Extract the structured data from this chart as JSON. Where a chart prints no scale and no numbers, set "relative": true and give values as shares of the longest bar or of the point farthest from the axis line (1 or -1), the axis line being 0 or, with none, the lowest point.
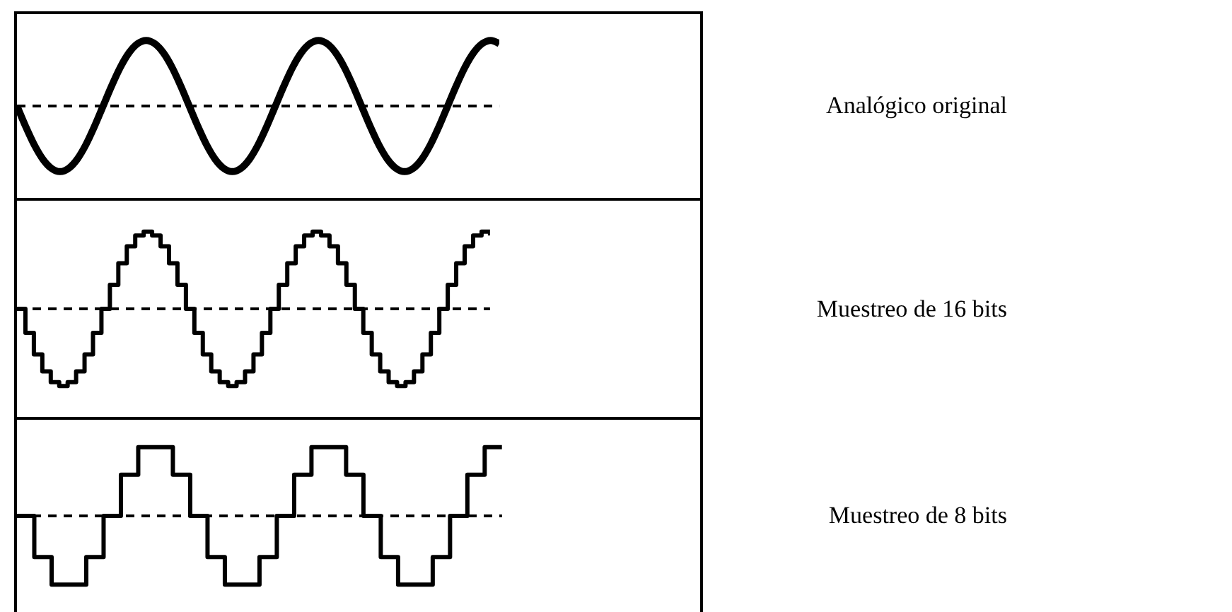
{
  "chart_data": [
    {
      "type": "line",
      "legend": "right",
      "relative": true,
      "tick_labels": false,
      "categories": [
        null,
        null,
        null,
        null,
        null,
        null,
        null,
        null,
        null,
        null,
        null,
        null,
        null,
        null,
        null,
        null,
        null,
        null,
        null,
        null,
        null,
        null,
        null,
        null,
        null,
        null,
        null,
        null,
        null,
        null,
        null,
        null,
        null,
        null,
        null,
        null,
        null,
        null,
        null,
        null,
        null,
        null,
        null,
        null,
        null,
        null,
        null,
        null,
        null,
        null,
        null,
        null,
        null,
        null,
        null,
        null,
        null
      ],
      "series": [
        {
          "name": "Analógico original",
          "color": "#000000",
          "values": [
            0,
            -0.31,
            -0.59,
            -0.81,
            -0.95,
            -1,
            -0.95,
            -0.81,
            -0.59,
            -0.31,
            0,
            0.31,
            0.59,
            0.81,
            0.95,
            1,
            0.95,
            0.81,
            0.59,
            0.31,
            0,
            -0.31,
            -0.59,
            -0.81,
            -0.95,
            -1,
            -0.95,
            -0.81,
            -0.59,
            -0.31,
            0,
            0.31,
            0.59,
            0.81,
            0.95,
            1,
            0.95,
            0.81,
            0.59,
            0.31,
            0,
            -0.31,
            -0.59,
            -0.81,
            -0.95,
            -1,
            -0.95,
            -0.81,
            -0.59,
            -0.31,
            0,
            0.31,
            0.59,
            0.81,
            0.95,
            1,
            0.95
          ]
        }
      ],
      "ref_lines": [
        {
          "axis": "y",
          "value": 0,
          "color": "#000000",
          "line_style": "dashed"
        }
      ]
    },
    {
      "type": "step",
      "legend": "right",
      "relative": true,
      "tick_labels": false,
      "categories": [
        null,
        null,
        null,
        null,
        null,
        null,
        null,
        null,
        null,
        null,
        null,
        null,
        null,
        null,
        null,
        null,
        null,
        null,
        null,
        null,
        null,
        null,
        null,
        null,
        null,
        null,
        null,
        null,
        null,
        null,
        null,
        null,
        null,
        null,
        null,
        null,
        null,
        null,
        null,
        null,
        null,
        null,
        null,
        null,
        null,
        null,
        null,
        null,
        null,
        null,
        null,
        null,
        null,
        null,
        null,
        null,
        null
      ],
      "series": [
        {
          "name": "Muestreo de 16 bits",
          "color": "#000000",
          "values": [
            0,
            -0.31,
            -0.59,
            -0.81,
            -0.95,
            -1,
            -0.95,
            -0.81,
            -0.59,
            -0.31,
            0,
            0.31,
            0.59,
            0.81,
            0.95,
            1,
            0.95,
            0.81,
            0.59,
            0.31,
            0,
            -0.31,
            -0.59,
            -0.81,
            -0.95,
            -1,
            -0.95,
            -0.81,
            -0.59,
            -0.31,
            0,
            0.31,
            0.59,
            0.81,
            0.95,
            1,
            0.95,
            0.81,
            0.59,
            0.31,
            0,
            -0.31,
            -0.59,
            -0.81,
            -0.95,
            -1,
            -0.95,
            -0.81,
            -0.59,
            -0.31,
            0,
            0.31,
            0.59,
            0.81,
            0.95,
            1,
            0.95
          ]
        }
      ],
      "ref_lines": [
        {
          "axis": "y",
          "value": 0,
          "color": "#000000",
          "line_style": "dashed"
        }
      ]
    },
    {
      "type": "step",
      "legend": "right",
      "relative": true,
      "tick_labels": false,
      "categories": [
        null,
        null,
        null,
        null,
        null,
        null,
        null,
        null,
        null,
        null,
        null,
        null,
        null,
        null,
        null,
        null,
        null,
        null,
        null,
        null,
        null,
        null,
        null,
        null,
        null,
        null,
        null,
        null,
        null
      ],
      "series": [
        {
          "name": "Muestreo de 8 bits",
          "color": "#000000",
          "values": [
            0,
            -0.6,
            -1,
            -1,
            -0.6,
            0,
            0.6,
            1,
            1,
            0.6,
            0,
            -0.6,
            -1,
            -1,
            -0.6,
            0,
            0.6,
            1,
            1,
            0.6,
            0,
            -0.6,
            -1,
            -1,
            -0.6,
            0,
            0.6,
            1,
            1
          ]
        }
      ],
      "ref_lines": [
        {
          "axis": "y",
          "value": 0,
          "color": "#000000",
          "line_style": "dashed"
        }
      ]
    }
  ]
}
